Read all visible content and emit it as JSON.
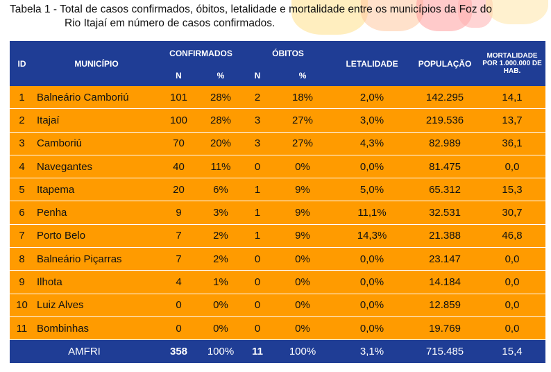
{
  "caption": {
    "line1": "Tabela 1 - Total de casos confirmados, óbitos, letalidade e mortalidade entre os municípios da Foz do",
    "line2": "Rio Itajaí em número de casos confirmados."
  },
  "headers": {
    "id": "ID",
    "municipio": "MUNICÍPIO",
    "confirmados": "CONFIRMADOS",
    "obitos": "ÓBITOS",
    "n": "N",
    "pct": "%",
    "letalidade": "LETALIDADE",
    "populacao": "POPULAÇÃO",
    "mortalidade": "MORTALIDADE POR 1.000.000 DE HAB."
  },
  "rows": [
    {
      "id": "1",
      "municipio": "Balneário Camboriú",
      "conf_n": "101",
      "conf_pct": "28%",
      "obitos_n": "2",
      "obitos_pct": "18%",
      "letalidade": "2,0%",
      "populacao": "142.295",
      "mortalidade": "14,1"
    },
    {
      "id": "2",
      "municipio": "Itajaí",
      "conf_n": "100",
      "conf_pct": "28%",
      "obitos_n": "3",
      "obitos_pct": "27%",
      "letalidade": "3,0%",
      "populacao": "219.536",
      "mortalidade": "13,7"
    },
    {
      "id": "3",
      "municipio": "Camboriú",
      "conf_n": "70",
      "conf_pct": "20%",
      "obitos_n": "3",
      "obitos_pct": "27%",
      "letalidade": "4,3%",
      "populacao": "82.989",
      "mortalidade": "36,1"
    },
    {
      "id": "4",
      "municipio": "Navegantes",
      "conf_n": "40",
      "conf_pct": "11%",
      "obitos_n": "0",
      "obitos_pct": "0%",
      "letalidade": "0,0%",
      "populacao": "81.475",
      "mortalidade": "0,0"
    },
    {
      "id": "5",
      "municipio": "Itapema",
      "conf_n": "20",
      "conf_pct": "6%",
      "obitos_n": "1",
      "obitos_pct": "9%",
      "letalidade": "5,0%",
      "populacao": "65.312",
      "mortalidade": "15,3"
    },
    {
      "id": "6",
      "municipio": "Penha",
      "conf_n": "9",
      "conf_pct": "3%",
      "obitos_n": "1",
      "obitos_pct": "9%",
      "letalidade": "11,1%",
      "populacao": "32.531",
      "mortalidade": "30,7"
    },
    {
      "id": "7",
      "municipio": "Porto Belo",
      "conf_n": "7",
      "conf_pct": "2%",
      "obitos_n": "1",
      "obitos_pct": "9%",
      "letalidade": "14,3%",
      "populacao": "21.388",
      "mortalidade": "46,8"
    },
    {
      "id": "8",
      "municipio": "Balneário Piçarras",
      "conf_n": "7",
      "conf_pct": "2%",
      "obitos_n": "0",
      "obitos_pct": "0%",
      "letalidade": "0,0%",
      "populacao": "23.147",
      "mortalidade": "0,0"
    },
    {
      "id": "9",
      "municipio": "Ilhota",
      "conf_n": "4",
      "conf_pct": "1%",
      "obitos_n": "0",
      "obitos_pct": "0%",
      "letalidade": "0,0%",
      "populacao": "14.184",
      "mortalidade": "0,0"
    },
    {
      "id": "10",
      "municipio": "Luiz Alves",
      "conf_n": "0",
      "conf_pct": "0%",
      "obitos_n": "0",
      "obitos_pct": "0%",
      "letalidade": "0,0%",
      "populacao": "12.859",
      "mortalidade": "0,0"
    },
    {
      "id": "11",
      "municipio": "Bombinhas",
      "conf_n": "0",
      "conf_pct": "0%",
      "obitos_n": "0",
      "obitos_pct": "0%",
      "letalidade": "0,0%",
      "populacao": "19.769",
      "mortalidade": "0,0"
    }
  ],
  "total": {
    "label": "AMFRI",
    "conf_n": "358",
    "conf_pct": "100%",
    "obitos_n": "11",
    "obitos_pct": "100%",
    "letalidade": "3,1%",
    "populacao": "715.485",
    "mortalidade": "15,4"
  },
  "colors": {
    "header_bg": "#1f3d95",
    "row_bg": "#ff9b00",
    "row_separator": "#ffffff"
  }
}
